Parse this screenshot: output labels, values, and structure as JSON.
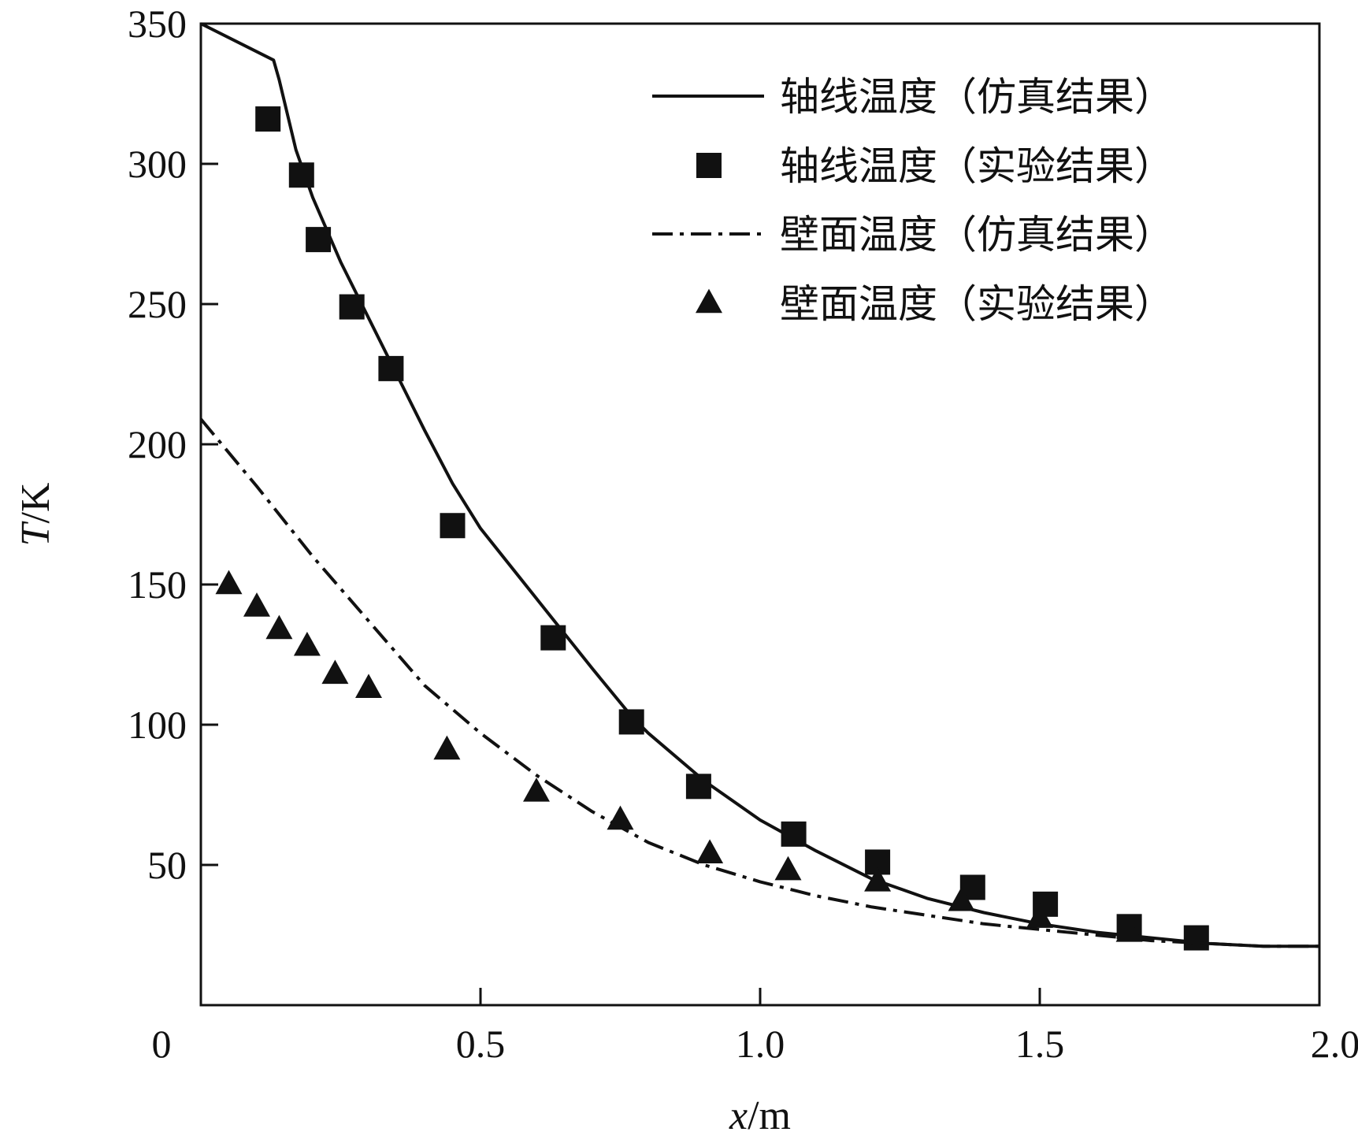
{
  "chart_data": {
    "type": "line",
    "xlabel": {
      "var": "x",
      "unit": "/m"
    },
    "ylabel": {
      "var": "T",
      "unit": "/K"
    },
    "xlim": [
      0,
      2.0
    ],
    "ylim": [
      0,
      350
    ],
    "xticks": [
      0,
      0.5,
      1.0,
      1.5,
      2.0
    ],
    "xtick_labels": [
      "0",
      "0.5",
      "1.0",
      "1.5",
      "2.0"
    ],
    "yticks": [
      50,
      100,
      150,
      200,
      250,
      300,
      350
    ],
    "ytick_labels": [
      "50",
      "100",
      "150",
      "200",
      "250",
      "300",
      "350"
    ],
    "grid": false,
    "legend_position": "top-right",
    "series": [
      {
        "name": "轴线温度（仿真结果）",
        "style": "solid-line",
        "color": "#111111",
        "x": [
          0,
          0.13,
          0.14,
          0.17,
          0.2,
          0.25,
          0.3,
          0.35,
          0.4,
          0.45,
          0.5,
          0.6,
          0.7,
          0.77,
          0.8,
          0.9,
          1.0,
          1.1,
          1.2,
          1.3,
          1.4,
          1.5,
          1.6,
          1.7,
          1.8,
          1.9,
          1.95,
          2.0
        ],
        "y": [
          350,
          337,
          330,
          305,
          288,
          265,
          245,
          225,
          205,
          186,
          170,
          145,
          120,
          103,
          97,
          80,
          66,
          55,
          45,
          38,
          33,
          29,
          26,
          24,
          22,
          21,
          21,
          21
        ]
      },
      {
        "name": "轴线温度（实验结果）",
        "style": "square-marker",
        "color": "#111111",
        "x": [
          0.12,
          0.18,
          0.21,
          0.27,
          0.34,
          0.45,
          0.63,
          0.77,
          0.89,
          1.06,
          1.21,
          1.38,
          1.51,
          1.66,
          1.78
        ],
        "y": [
          316,
          296,
          273,
          249,
          227,
          171,
          131,
          101,
          78,
          61,
          51,
          42,
          36,
          28,
          24
        ]
      },
      {
        "name": "壁面温度（仿真结果）",
        "style": "dash-dot-line",
        "color": "#111111",
        "x": [
          0,
          0.1,
          0.2,
          0.3,
          0.4,
          0.5,
          0.6,
          0.7,
          0.8,
          0.9,
          1.0,
          1.1,
          1.2,
          1.3,
          1.4,
          1.5,
          1.6,
          1.7,
          1.8,
          1.9,
          2.0
        ],
        "y": [
          209,
          185,
          160,
          137,
          114,
          97,
          82,
          69,
          58,
          50,
          44,
          39,
          35,
          32,
          29,
          27,
          25,
          23,
          22,
          21,
          21
        ]
      },
      {
        "name": "壁面温度（实验结果）",
        "style": "triangle-marker",
        "color": "#111111",
        "x": [
          0.05,
          0.1,
          0.14,
          0.19,
          0.24,
          0.3,
          0.44,
          0.6,
          0.75,
          0.91,
          1.05,
          1.21,
          1.36,
          1.5,
          1.66
        ],
        "y": [
          150,
          142,
          134,
          128,
          118,
          113,
          91,
          76,
          66,
          54,
          48,
          44,
          37,
          31,
          26
        ]
      }
    ]
  }
}
